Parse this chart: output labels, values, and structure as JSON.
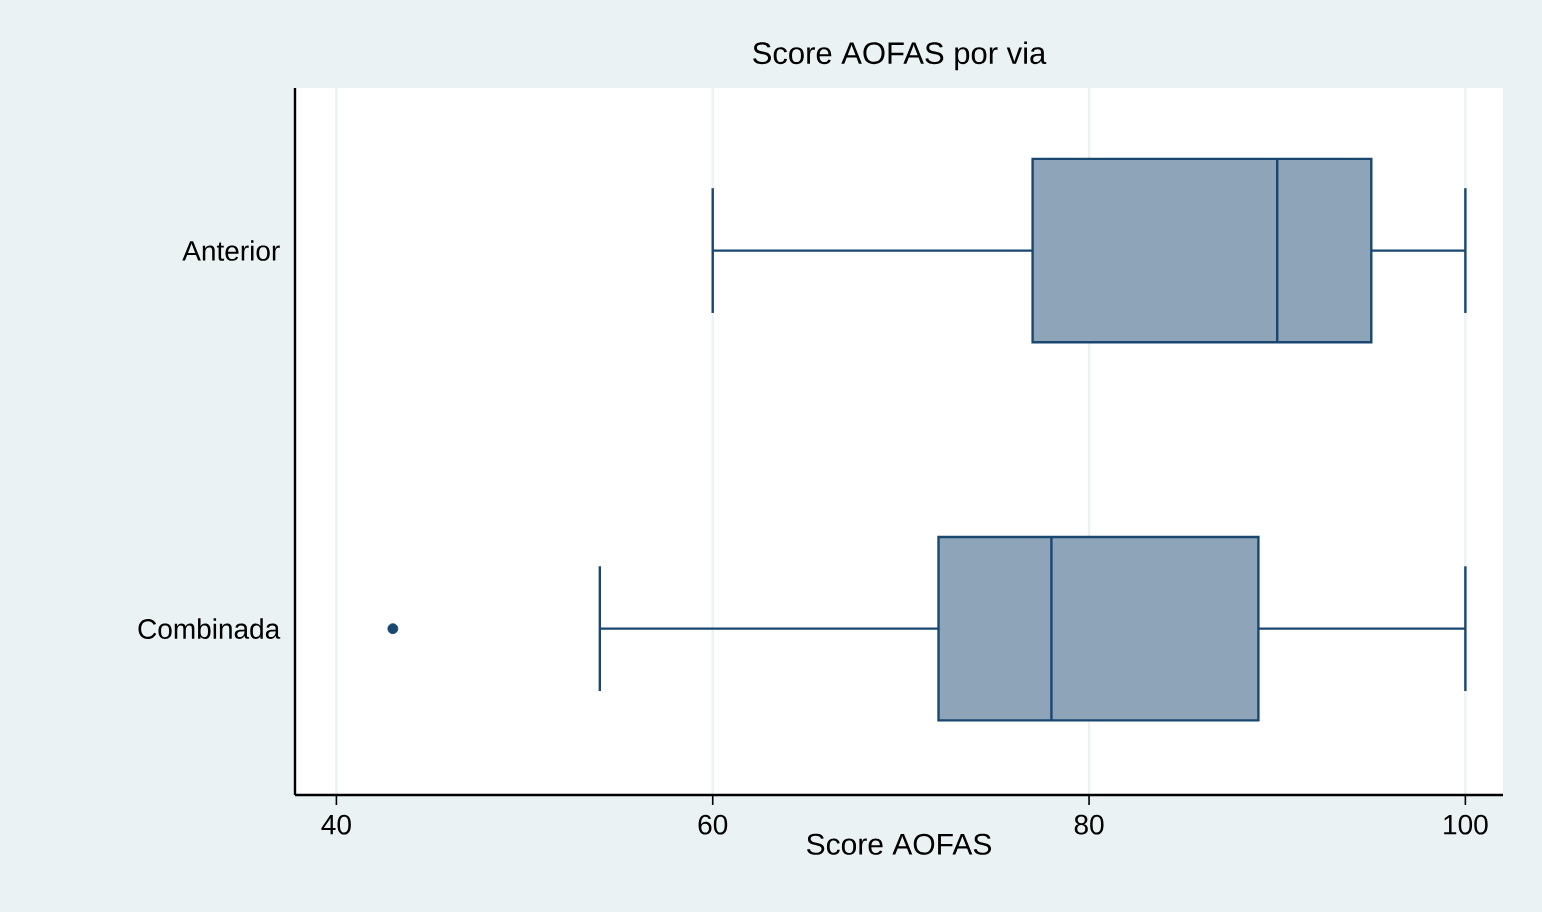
{
  "chart_data": {
    "type": "box",
    "title": "Score AOFAS por via",
    "xlabel": "Score AOFAS",
    "orientation": "horizontal",
    "categories": [
      "Anterior",
      "Combinada"
    ],
    "boxes": [
      {
        "low": 60,
        "q1": 77,
        "median": 90,
        "q3": 95,
        "high": 100
      },
      {
        "low": 54,
        "q1": 72,
        "median": 78,
        "q3": 89,
        "high": 100,
        "outliers": [
          43
        ]
      }
    ],
    "color": "#8ea4b8",
    "xlim": [
      37.8,
      102
    ],
    "xticks": [
      40,
      60,
      80,
      100
    ],
    "grid": "x"
  }
}
